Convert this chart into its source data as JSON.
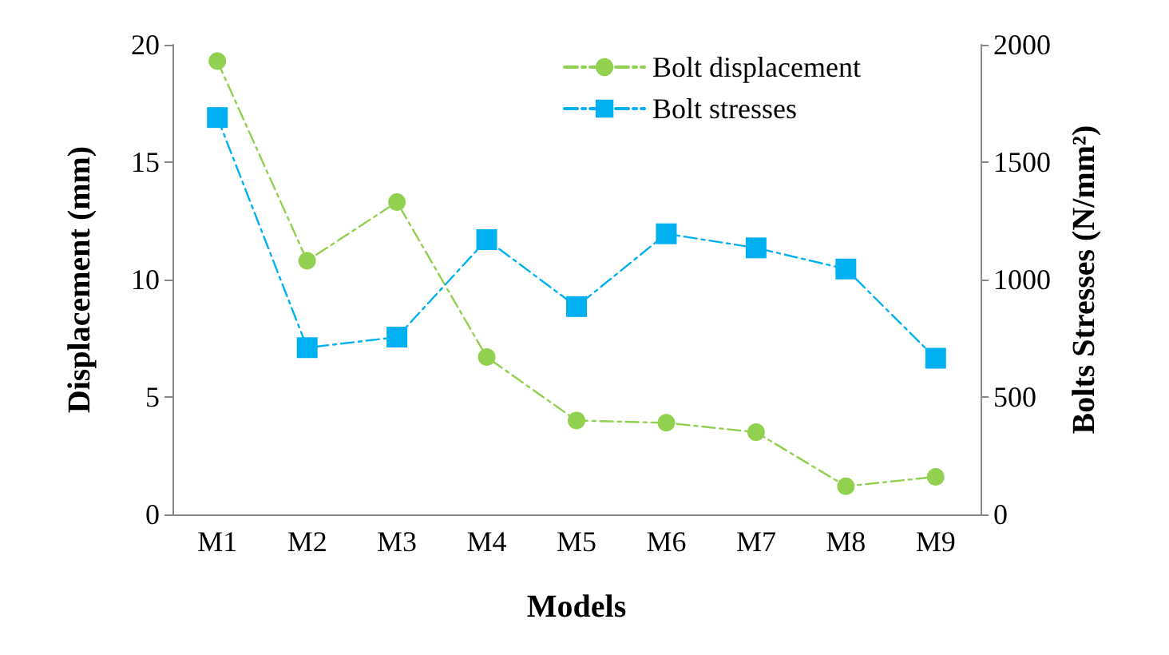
{
  "chart_data": {
    "type": "line",
    "xlabel": "Models",
    "ylabel": "Displacement (mm)",
    "y2label": "Bolts Stresses (N/mm²)",
    "categories": [
      "M1",
      "M2",
      "M3",
      "M4",
      "M5",
      "M6",
      "M7",
      "M8",
      "M9"
    ],
    "series": [
      {
        "name": "Bolt displacement",
        "color": "#92d050",
        "marker": "circle",
        "values": [
          19.3,
          10.8,
          13.3,
          6.7,
          4.0,
          3.9,
          3.5,
          1.2,
          1.6
        ]
      },
      {
        "name": "Bolt stresses",
        "color": "#00b0f0",
        "marker": "square",
        "axis": "y2",
        "values": [
          1690,
          710,
          755,
          1170,
          885,
          1195,
          1135,
          1045,
          665
        ]
      }
    ],
    "ylim": [
      0,
      20
    ],
    "yticks": [
      0,
      5,
      10,
      15,
      20
    ],
    "y2lim": [
      0,
      2000
    ],
    "y2ticks": [
      0,
      500,
      1000,
      1500,
      2000
    ],
    "line_style": "dashed",
    "legend": "top right",
    "grid": false
  }
}
